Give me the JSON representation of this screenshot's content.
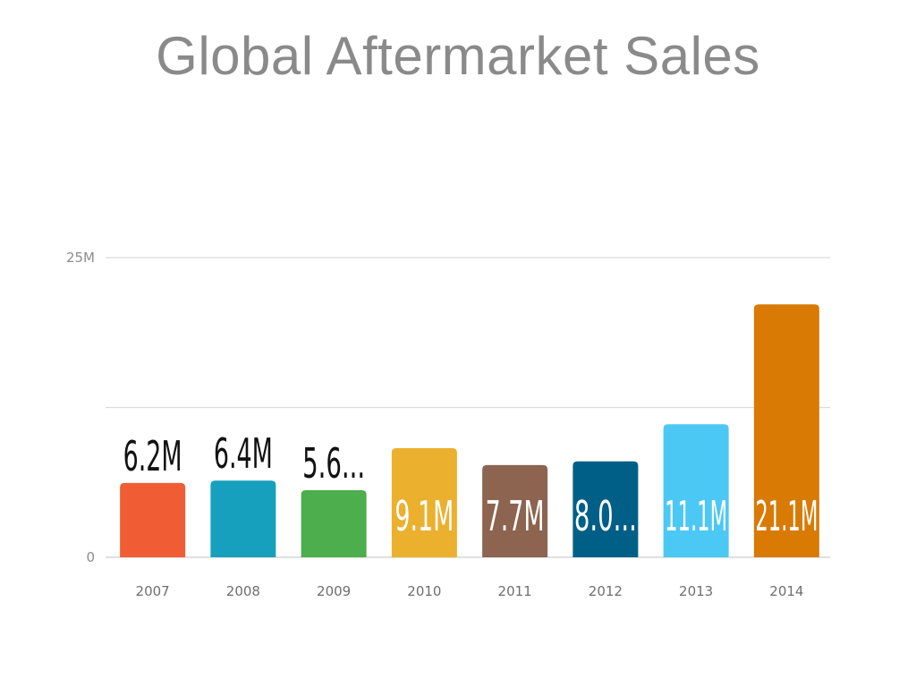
{
  "page": {
    "title": "Global Aftermarket Sales"
  },
  "chart_data": {
    "type": "bar",
    "title": "Global Aftermarket Sales",
    "xlabel": "",
    "ylabel": "",
    "categories": [
      "2007",
      "2008",
      "2009",
      "2010",
      "2011",
      "2012",
      "2013",
      "2014"
    ],
    "values": [
      6.2,
      6.4,
      5.6,
      9.1,
      7.7,
      8.0,
      11.1,
      21.1
    ],
    "value_unit": "M",
    "data_labels": [
      "6.2M",
      "6.4M",
      "5.6...",
      "9.1M",
      "7.7M",
      "8.0...",
      "11.1M",
      "21.1M"
    ],
    "label_inside": [
      false,
      false,
      false,
      true,
      true,
      true,
      true,
      true
    ],
    "colors": [
      "#F05D35",
      "#17A0BD",
      "#4CAE4C",
      "#EBB02D",
      "#8C6450",
      "#005F87",
      "#4CC8F5",
      "#D97A05"
    ],
    "ylim": [
      0,
      25
    ],
    "yticks": [
      {
        "value": 0,
        "label": "0"
      },
      {
        "value": 12.5,
        "label": ""
      },
      {
        "value": 25,
        "label": "25M"
      }
    ],
    "grid": true,
    "legend": "none"
  }
}
